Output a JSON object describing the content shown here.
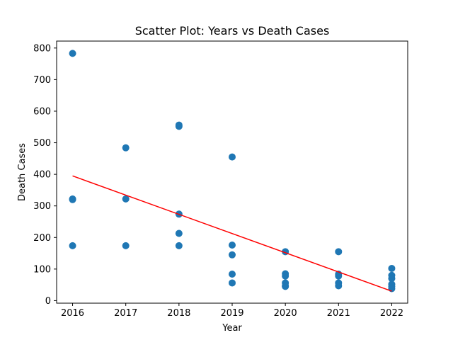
{
  "chart_data": {
    "type": "scatter",
    "title": "Scatter Plot: Years vs Death Cases",
    "xlabel": "Year",
    "ylabel": "Death Cases",
    "xlim": [
      2015.7,
      2022.3
    ],
    "ylim": [
      -8,
      822
    ],
    "xticks": [
      2016,
      2017,
      2018,
      2019,
      2020,
      2021,
      2022
    ],
    "yticks": [
      0,
      100,
      200,
      300,
      400,
      500,
      600,
      700,
      800
    ],
    "grid": false,
    "legend": "none",
    "colors": {
      "points": "#1f77b4",
      "trend": "#ff0000"
    },
    "series": [
      {
        "kind": "points",
        "x": [
          2016,
          2016,
          2016,
          2016,
          2017,
          2017,
          2017,
          2018,
          2018,
          2018,
          2018,
          2018,
          2019,
          2019,
          2019,
          2019,
          2019,
          2020,
          2020,
          2020,
          2020,
          2020,
          2020,
          2021,
          2021,
          2021,
          2021,
          2021,
          2022,
          2022,
          2022,
          2022,
          2022,
          2022
        ],
        "y": [
          783,
          322,
          320,
          174,
          484,
          322,
          174,
          556,
          552,
          274,
          213,
          174,
          455,
          176,
          145,
          84,
          56,
          155,
          85,
          78,
          56,
          47,
          45,
          155,
          84,
          78,
          56,
          47,
          102,
          80,
          70,
          52,
          45,
          38
        ]
      },
      {
        "kind": "trend-line",
        "x": [
          2016,
          2022
        ],
        "y": [
          395,
          30
        ]
      }
    ]
  }
}
